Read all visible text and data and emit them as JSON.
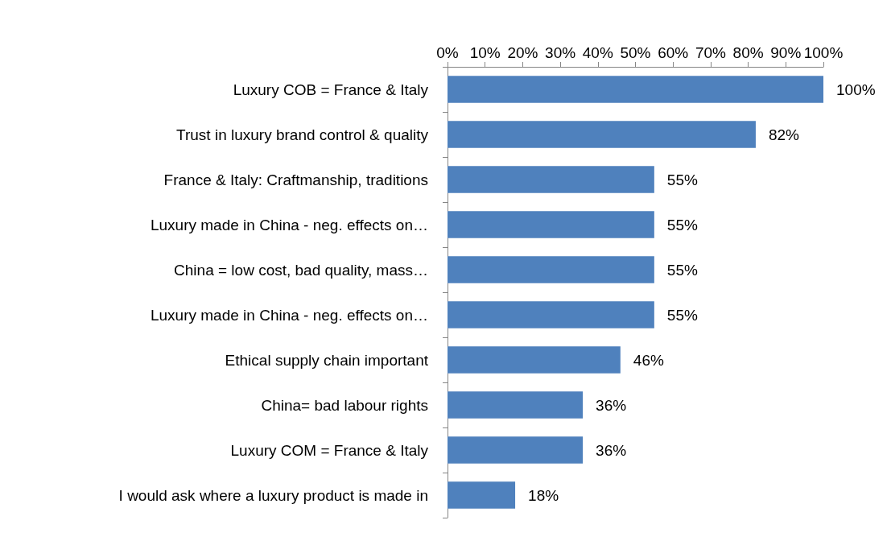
{
  "chart_data": {
    "type": "bar",
    "orientation": "horizontal",
    "categories": [
      "Luxury COB = France & Italy",
      "Trust in luxury brand control & quality",
      "France & Italy: Craftmanship, traditions",
      "Luxury made in China - neg. effects on…",
      "China = low cost, bad quality, mass…",
      "Luxury made in China - neg. effects on…",
      "Ethical supply chain important",
      "China= bad labour rights",
      "Luxury COM = France & Italy",
      "I would ask where a luxury product is made in"
    ],
    "values": [
      100,
      82,
      55,
      55,
      55,
      55,
      46,
      36,
      36,
      18
    ],
    "value_labels": [
      "100%",
      "82%",
      "55%",
      "55%",
      "55%",
      "55%",
      "46%",
      "36%",
      "36%",
      "18%"
    ],
    "color": "#4f81bd",
    "xlim": [
      0,
      100
    ],
    "xticks": [
      {
        "value": 0,
        "label": "0%"
      },
      {
        "value": 10,
        "label": "10%"
      },
      {
        "value": 20,
        "label": "20%"
      },
      {
        "value": 30,
        "label": "30%"
      },
      {
        "value": 40,
        "label": "40%"
      },
      {
        "value": 50,
        "label": "50%"
      },
      {
        "value": 60,
        "label": "60%"
      },
      {
        "value": 70,
        "label": "70%"
      },
      {
        "value": 80,
        "label": "80%"
      },
      {
        "value": 90,
        "label": "90%"
      },
      {
        "value": 100,
        "label": "100%"
      }
    ],
    "grid": false
  }
}
